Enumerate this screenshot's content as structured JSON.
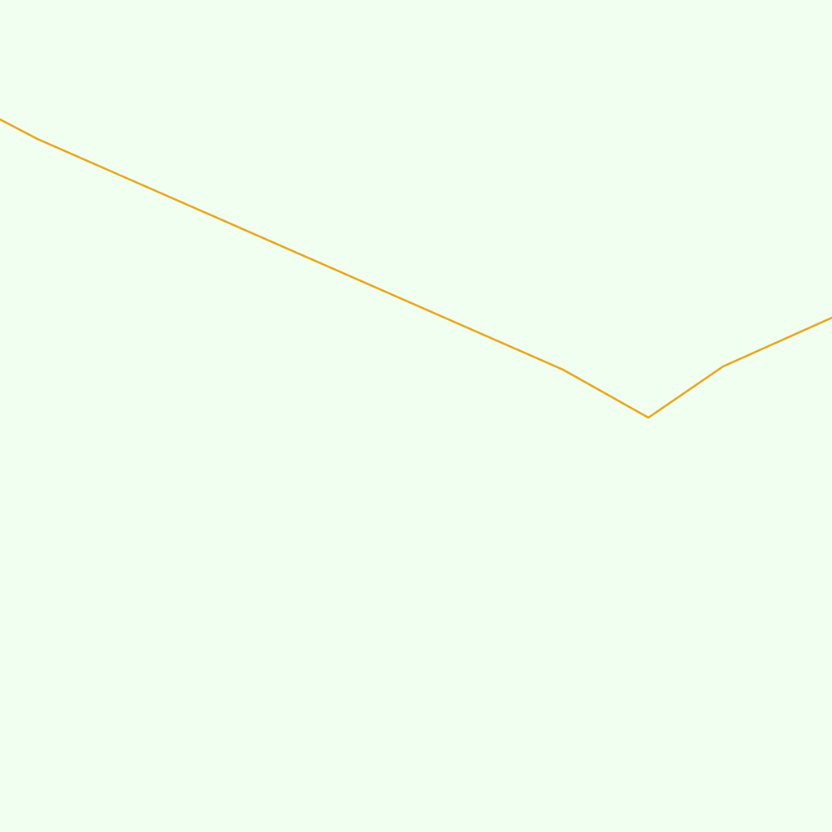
{
  "map": {
    "background_color": "#F0FFF0",
    "route": {
      "color": "#E8A317"
    }
  }
}
